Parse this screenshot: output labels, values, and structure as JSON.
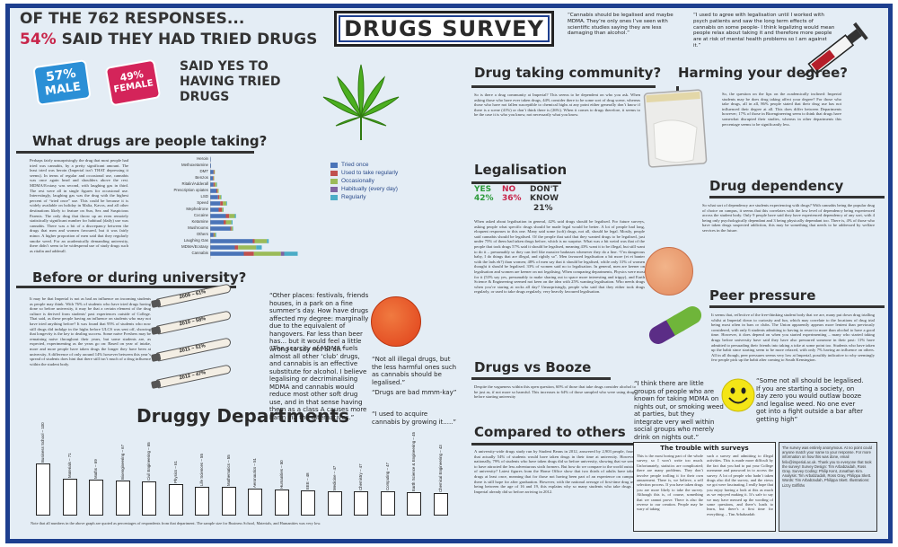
{
  "title": "DRUGS SURVEY",
  "intro": {
    "line1": "OF THE 762 RESPONSES...",
    "pct": "54%",
    "line2": " SAID THEY HAD TRIED DRUGS"
  },
  "gender": {
    "male_pct": "57%",
    "male": "MALE",
    "female_pct": "49%",
    "female": "FEMALE",
    "said_yes": "SAID YES TO HAVING TRIED DRUGS"
  },
  "top_quotes": [
    "“Cannabis should be legalised and maybe MDMA. They’re only ones I’ve seen with scientific studies saying they are less damaging than alcohol.”",
    "“I used to agree with legalisation until I worked with psych patients and saw the long term effects of cannabis on some people- I think legalizing would mean people relax about taking it and therefore more people are at risk of mental health problems so I am against it.”"
  ],
  "sections": {
    "what_drugs": "What drugs are people taking?",
    "before_during": "Before or during university?",
    "druggy_depts": "Druggy Departments",
    "community": "Drug taking community?",
    "harming": "Harming your degree?",
    "legalisation": "Legalisation",
    "dependency": "Drug dependency",
    "peer": "Peer pressure",
    "booze": "Drugs vs Booze",
    "compared": "Compared to others",
    "trouble": "The trouble with surveys"
  },
  "body": {
    "what_drugs": "Perhaps fairly unsurprisingly the drug that most people had tried was cannabis, by a pretty significant amount. The least tried was heroin (Imperial isn’t THAT depressing it seems). In terms of regular and occasional use, cannabis was once again head and shoulders above the rest. MDMA/Ecstasy was second, with laughing gas in third. The rest were all in single figures for occasional use. Interestingly, laughing gas was the drug with the highest percent of “tried once” use. This could be because it is widely available on holiday in Malia, Kavos, and all other destinations likely to feature on Sun, Sex and Suspicious Parents. The only drug that throw up an even remotely statistically significant number for habitual (daily) use was cannabis. There was a bit of a discrepancy between the drugs that men and women favoured, but it was fairly minor. A higher proportion of men said that they regularly smoke weed. For an academically demanding university, there didn’t seem to be widespread use of study drugs such as ritalin and adderall.",
    "before_during": "It may be that Imperial is not as bad an influence on incoming students as people may think. With 76% of students who have tried drugs having done so before university, it may be that a certain element of the drug culture is derived from students’ past experiences outside of College. That said, as these people having an influence on students who may not have tried anything before? It was found that 95% of students who now still drugs did indulge in the highs before ULCS was sent off, showing that longevity is the key to dealing success. Some naive Freshers may be remaining naive throughout their years, but some students are, as expected, experimenting as the years go on: Based on year of intake, more and more people have taken drugs the longer they have been at university. A difference of only around 14% however between this year’s spread of students does hint that there still isn’t much of a drug influence within the student body.",
    "community": "So is there a drug community at Imperial? This seems to be dependent on who you ask. When asking those who have ever taken drugs, 44% consider there to be some sort of drug scene, whereas those who have not fallen susceptible to chemical highs at any point either generally don’t know if there is a scene (41%) or don’t think there is (26%). When it comes to drugs therefore, it seems to be the case it is who you know, not necessarily what you know.",
    "harming": "So, the question on the lips on the academically inclined: Imperial students may be does drug taking affect your degree? For those who take drugs, all in all, 86% people stated that their drug use has not influenced their degree at all. This does differ between Departments however; 17% of those in Bioengineering seem to think that drugs have somewhat disrupted their studies, whereas in other departments this percentage seems to be significantly less.",
    "legalisation": "When asked about legalisation in general, 42% said drugs should be legalised. For future surveys, asking people what specific drugs should be made legal would be better. A lot of people had long, eloquent responses to this one. Many said some (soft) drugs, not all, should be legal. Mostly, people said cannabis should be legalised. Of the people that said that they wanted drugs to be legalised, just under 75% of them had taken drugs before, which is no surprise. What was a bit weird was that of the people that took drugs 57% said it should be legalised, meaning 43% want it to be illegal, but still want to do it – presumably so they can feel like massive badasses whenever they do a line. “I’m dangerous baby, I do things that are illegal, and rightly so”. Men favoured legalisation a bit more (et et banter with the lads eh?) than women; 48% of men say that it should be legalised, while only 31% of women thought it should be legalised. 33% of women said no to legalisation. In general, men are keener on legalisation and women are keener on not legalising. When comparing departments, Physics were most for it (53% say yes, presumably to make sharing out to space more interesting and trippy), and Earth Science & Engineering seemed not keen on the idea with 25% wanting legalisation. Who needs drugs when you’re staring at rocks all day? Unsurprisingly, people who said that they either took drugs regularly, or used to take drugs regularly, very heavily favoured legalisation.",
    "dependency": "So what sort of dependency are students experiencing with drugs? With cannabis being the popular drug of choice on campus, it seems that this correlates with the low level of dependency being experienced across the student body. Only 9 people have said they have experienced dependency of any sort, with 4 being only psychologically dependant and 3 being physically dependant too. There is, 4% of those who have taken drugs suspected addiction, this may be something that needs to be addressed by welfare services in the future.",
    "peer": "It seems that, reflective of the free-thinking student body that we are, many put down drug trialling whilst at Imperial down to curiosity and fun, which may correlate to the locations of drug trial being most often in bars or clubs. The Union apparently appears more lenient than previously considered, with only 6 students admitting to having to resort to more than alcohol to have a good time. However, it does depend on when you started experimenting – many who started taking drugs before university have said they have also pressured someone in their past: 11% have admitted to persuading their friends into taking a toke at some point too. Students who have taken up the habit since starting seem to be more relaxed, with only 7% having an influence on others. All in all though, peer pressures seems very low at Imperial, possibly indicative to why seemingly few people pick up the habit after coming to South Kensington.",
    "booze": "Despite the vagueness within this open question, 60% of those that take drugs consider alcohol to be just as, if not more so harmful. This increases to 64% of those sampled who were using drugs before starting university",
    "compared": "A university-wide drugs study run by Student Beans in 2012, answered by 2,903 people, found that actually 54% of students would have taken drugs in their time at university. However, nationally, 79% of students who have taken drugs did so before university, showing that we seem to have attracted the less adventurous sixth formers. But how do we compare to the world outside of university? Latest figures from the Home Office show that two thirds of adults have taken drugs at least once, meaning that for those not having been part of an experience on campus, there is still hope for after graduation. However, with the national average of first-time drug use being between the age of 16 and 19, this explains why so many students who take drugs at Imperial already did so before arriving in 2012.",
    "trouble_left": "This is the most boring part of the whole survey, so I won’t write too much. Unfortunately, statistics are complicated; there are many problems. They don’t involve people trolling it for their own amusement. There is, we believe, a self selection process. If you have taken drugs you are more likely to take the survey. Although this is, of course, something that we cannot prove. There is also the reverse to our creation. People may be wary of taking",
    "trouble_right": "such a survey and admitting to illegal activities. This is made more difficult by the fact that you had to put your College username and password in to access the survey. A lot of people who hadn’t taken drugs also did the survey, and the views we got were fascinating, I really hope that you enjoy having a look at this as much as we enjoyed making it. It’s safe to say we may have messed up the wording of some questions, and there’s loads to learn, but there’s a first time for everything. – Tim Arbabzadah"
  },
  "credits": "The survey was entirely anonymous. At no point could anyone match your name to your response. For more information on how this was done, email felix@imperial.ac.uk. Thank you to everyone that took the survey! Survey Design: Tim Arbabzadah, Ross Gray. Survey Coding: Philip Kent, Jonathan Kim. Analysis: Tim Arbabzadah, Ross Gray, Philippa Skett. Words: Tim Arbabzadah, Philippa Skett. Illustrations: Lizzy Griffiths",
  "legend": [
    "Tried once",
    "Used to take regularly",
    "Occasionally",
    "Habitually (every day)",
    "Regularly"
  ],
  "legal": {
    "yes_label": "YES",
    "yes_pct": "42%",
    "no_label": "NO",
    "no_pct": "36%",
    "dk_label": "DON'T KNOW",
    "dk_pct": "21%"
  },
  "mid_quotes": [
    "“Other places: festivals, friends houses, in a park on a fine summer’s day. How have drugs affected my degree: marginally due to the equivalent of hangovers. Far less than beer has... but it would feel a little wrong to say not at all.”",
    "“The scarcity of MDMA fuels almost all other ‘club’ drugs, and cannabis is an effective substitute for alcohol. I believe legalising or decriminalising MDMA and cannabis would reduce most other soft drug use, and in that sense having them as a class A causes more harm via the alternatives.”",
    "“Not all illegal drugs, but the less harmful ones such as cannabis should be legalised.”",
    "“Drugs are bad mmm-kay”",
    "“I used to acquire cannabis by growing it.....”",
    "“I think there are little groups of people who are known for taking MDMA on nights out, or smoking weed at parties, but they integrate very well within social groups who merely drink on nights out.”",
    "“Some not all should be legalised. If you are starting a society, on day zero you would outlaw booze and legalise weed. No one ever got into a fight outside a bar after getting high”"
  ],
  "joints": [
    "2009 – 61%",
    "2010 – 58%",
    "2011 – 51%",
    "2012 – 47%"
  ],
  "footnote": "Note that all numbers in the above graph are quoted as percentages of respondents from that department. The sample size for Business School, Materials, and Humanities was very low.",
  "chart_data": [
    {
      "type": "bar",
      "title": "What drugs are people taking?",
      "orientation": "horizontal",
      "stacked": true,
      "categories": [
        "Heroin",
        "Methoxetamine",
        "DMT",
        "Benzos",
        "Ritalin/Adderall",
        "Prescription opiates",
        "LSD",
        "Speed",
        "Mephedrone",
        "Cocaine",
        "Ketamine",
        "Mushrooms",
        "Others",
        "Laughing Gas",
        "MDMA/Ecstasy",
        "Cannabis"
      ],
      "series": [
        {
          "name": "Tried once",
          "color": "#4a74b8",
          "values": [
            0.3,
            0.4,
            1.5,
            1.2,
            1.5,
            2.8,
            3.5,
            4.5,
            3.8,
            7,
            6,
            9,
            1.5,
            19,
            11,
            15
          ]
        },
        {
          "name": "Used to take regularly",
          "color": "#c0504d",
          "values": [
            0,
            0,
            0.3,
            0.3,
            0.6,
            0.5,
            0.6,
            1.2,
            1.5,
            1.5,
            1,
            0.5,
            0.3,
            0.8,
            1.5,
            4.5
          ]
        },
        {
          "name": "Occasionally",
          "color": "#9bbb59",
          "values": [
            0,
            0,
            0.3,
            0.3,
            0.8,
            0.5,
            0.8,
            1.5,
            0.5,
            2.5,
            2.5,
            0.6,
            0.6,
            5.5,
            8,
            12
          ]
        },
        {
          "name": "Habitually (every day)",
          "color": "#8064a2",
          "values": [
            0,
            0,
            0,
            0,
            0,
            0,
            0,
            0,
            0,
            0,
            0,
            0,
            0,
            0,
            0,
            1.5
          ]
        },
        {
          "name": "Regularly",
          "color": "#4bacc6",
          "values": [
            0,
            0,
            0,
            0,
            0.2,
            0,
            0.2,
            0.3,
            0.2,
            0.5,
            0.5,
            0.2,
            0.3,
            0.8,
            2.5,
            6
          ]
        }
      ]
    },
    {
      "type": "bar",
      "title": "Druggy Departments",
      "categories": [
        "Business School",
        "Materials",
        "Maths",
        "Bioengineering",
        "Civil Engineering",
        "Physics",
        "Life Sciences",
        "Mathematics",
        "Aeronautics",
        "Humanities",
        "EEE",
        "Medicine",
        "Chemistry",
        "Computing",
        "Earth Science & Engineering",
        "Chemical Engineering"
      ],
      "values": [
        100,
        71,
        69,
        67,
        65,
        61,
        55,
        55,
        51,
        50,
        48,
        47,
        47,
        47,
        45,
        43
      ]
    }
  ]
}
